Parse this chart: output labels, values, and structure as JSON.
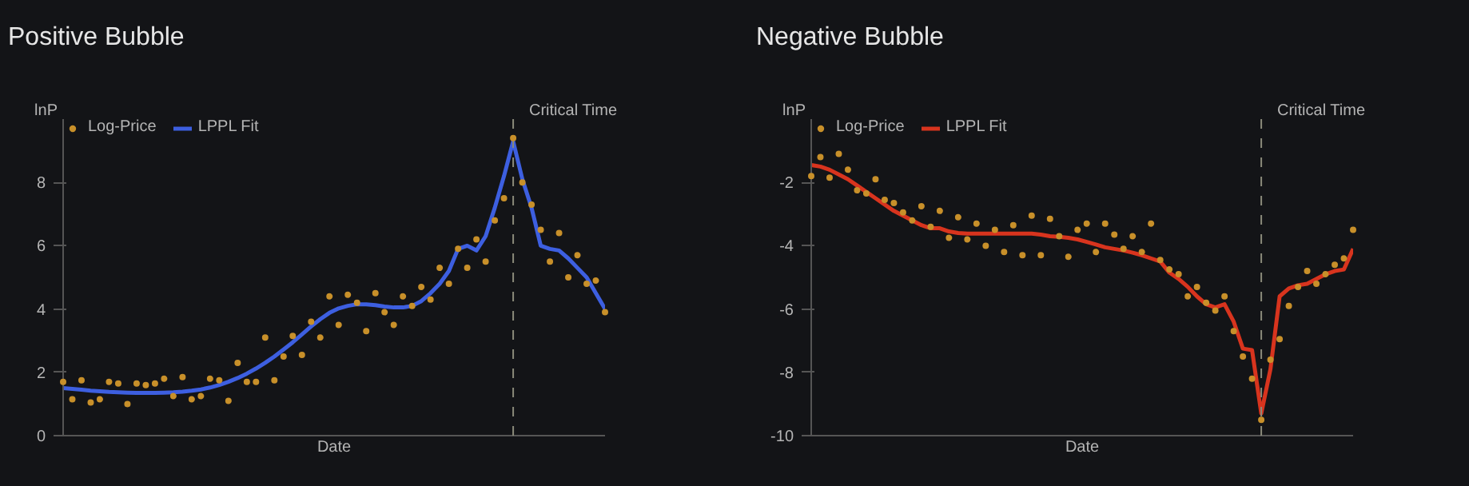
{
  "chart_data": [
    {
      "type": "line",
      "title": "Positive Bubble",
      "xlabel": "Date",
      "ylabel": "lnP",
      "categories": [
        null,
        null,
        null,
        null,
        null,
        null,
        null,
        null,
        null,
        null,
        null,
        null,
        null,
        null,
        null,
        null,
        null,
        null,
        null,
        null,
        null,
        null,
        null,
        null,
        null,
        null,
        null,
        null,
        null,
        null,
        null,
        null,
        null,
        null,
        null,
        null,
        null,
        null,
        null,
        null,
        null,
        null,
        null,
        null,
        null,
        null,
        null,
        null,
        null,
        null,
        null,
        null,
        null,
        null,
        null,
        null,
        null,
        null,
        null,
        null
      ],
      "ylim": [
        0,
        10
      ],
      "yticks": [
        0,
        2,
        4,
        6,
        8
      ],
      "grid": false,
      "legend": "top left",
      "tick_labels": "y",
      "annotations": [
        "Critical Time"
      ],
      "series": [
        {
          "name": "Log-Price",
          "type": "scatter",
          "marker": "circle",
          "color": "#c8902a",
          "values": [
            1.7,
            1.15,
            1.75,
            1.05,
            1.15,
            1.7,
            1.65,
            1.0,
            1.65,
            1.6,
            1.65,
            1.8,
            1.25,
            1.85,
            1.15,
            1.25,
            1.8,
            1.75,
            1.1,
            2.3,
            1.7,
            1.7,
            3.1,
            1.75,
            2.5,
            3.15,
            2.55,
            3.6,
            3.1,
            4.4,
            3.5,
            4.45,
            4.2,
            3.3,
            4.5,
            3.9,
            3.5,
            4.4,
            4.1,
            4.7,
            4.3,
            5.3,
            4.8,
            5.9,
            5.3,
            6.2,
            5.5,
            6.8,
            7.5,
            9.4,
            8.0,
            7.3,
            6.5,
            5.5,
            6.4,
            5.0,
            5.7,
            4.8,
            4.9,
            3.9
          ]
        },
        {
          "name": "LPPL Fit",
          "color": "#3d5fe0",
          "values": [
            1.5,
            1.48,
            1.45,
            1.42,
            1.4,
            1.38,
            1.37,
            1.36,
            1.35,
            1.35,
            1.35,
            1.36,
            1.37,
            1.39,
            1.42,
            1.46,
            1.52,
            1.6,
            1.7,
            1.82,
            1.96,
            2.12,
            2.3,
            2.5,
            2.72,
            2.95,
            3.2,
            3.45,
            3.68,
            3.88,
            4.02,
            4.1,
            4.15,
            4.15,
            4.12,
            4.08,
            4.05,
            4.05,
            4.1,
            4.25,
            4.5,
            4.8,
            5.2,
            5.9,
            6.0,
            5.85,
            6.3,
            7.2,
            8.2,
            9.3,
            8.1,
            7.2,
            6.0,
            5.9,
            5.85,
            5.6,
            5.3,
            5.0,
            4.5,
            4.0
          ]
        }
      ]
    },
    {
      "type": "line",
      "title": "Negative Bubble",
      "xlabel": "Date",
      "ylabel": "lnP",
      "categories": [
        null,
        null,
        null,
        null,
        null,
        null,
        null,
        null,
        null,
        null,
        null,
        null,
        null,
        null,
        null,
        null,
        null,
        null,
        null,
        null,
        null,
        null,
        null,
        null,
        null,
        null,
        null,
        null,
        null,
        null,
        null,
        null,
        null,
        null,
        null,
        null,
        null,
        null,
        null,
        null,
        null,
        null,
        null,
        null,
        null,
        null,
        null,
        null,
        null,
        null,
        null,
        null,
        null,
        null,
        null,
        null,
        null,
        null,
        null,
        null
      ],
      "ylim": [
        -10,
        0
      ],
      "yticks": [
        -10,
        -8,
        -6,
        -4,
        -2
      ],
      "grid": false,
      "legend": "top left",
      "tick_labels": "y",
      "annotations": [
        "Critical Time"
      ],
      "series": [
        {
          "name": "Log-Price",
          "type": "scatter",
          "marker": "circle",
          "color": "#c8902a",
          "values": [
            -1.8,
            -1.2,
            -1.85,
            -1.1,
            -1.6,
            -2.25,
            -2.35,
            -1.9,
            -2.55,
            -2.65,
            -2.95,
            -3.2,
            -2.75,
            -3.4,
            -2.9,
            -3.75,
            -3.1,
            -3.8,
            -3.3,
            -4.0,
            -3.5,
            -4.2,
            -3.35,
            -4.3,
            -3.05,
            -4.3,
            -3.15,
            -3.7,
            -4.35,
            -3.5,
            -3.3,
            -4.2,
            -3.3,
            -3.65,
            -4.1,
            -3.7,
            -4.2,
            -3.3,
            -4.45,
            -4.75,
            -4.9,
            -5.6,
            -5.3,
            -5.8,
            -6.05,
            -5.6,
            -6.7,
            -7.5,
            -8.2,
            -9.5,
            -7.6,
            -6.95,
            -5.9,
            -5.3,
            -4.8,
            -5.2,
            -4.9,
            -4.6,
            -4.4,
            -3.5
          ]
        },
        {
          "name": "LPPL Fit",
          "color": "#d8341e",
          "values": [
            -1.45,
            -1.5,
            -1.6,
            -1.75,
            -1.9,
            -2.1,
            -2.3,
            -2.5,
            -2.7,
            -2.9,
            -3.05,
            -3.2,
            -3.35,
            -3.45,
            -3.45,
            -3.55,
            -3.6,
            -3.62,
            -3.62,
            -3.62,
            -3.62,
            -3.62,
            -3.62,
            -3.62,
            -3.62,
            -3.65,
            -3.7,
            -3.72,
            -3.75,
            -3.8,
            -3.88,
            -3.96,
            -4.05,
            -4.1,
            -4.15,
            -4.22,
            -4.3,
            -4.4,
            -4.5,
            -4.85,
            -5.05,
            -5.3,
            -5.6,
            -5.85,
            -5.95,
            -5.85,
            -6.4,
            -7.25,
            -7.3,
            -9.3,
            -7.9,
            -5.6,
            -5.35,
            -5.25,
            -5.2,
            -5.05,
            -4.9,
            -4.8,
            -4.75,
            -4.1
          ]
        }
      ]
    }
  ]
}
